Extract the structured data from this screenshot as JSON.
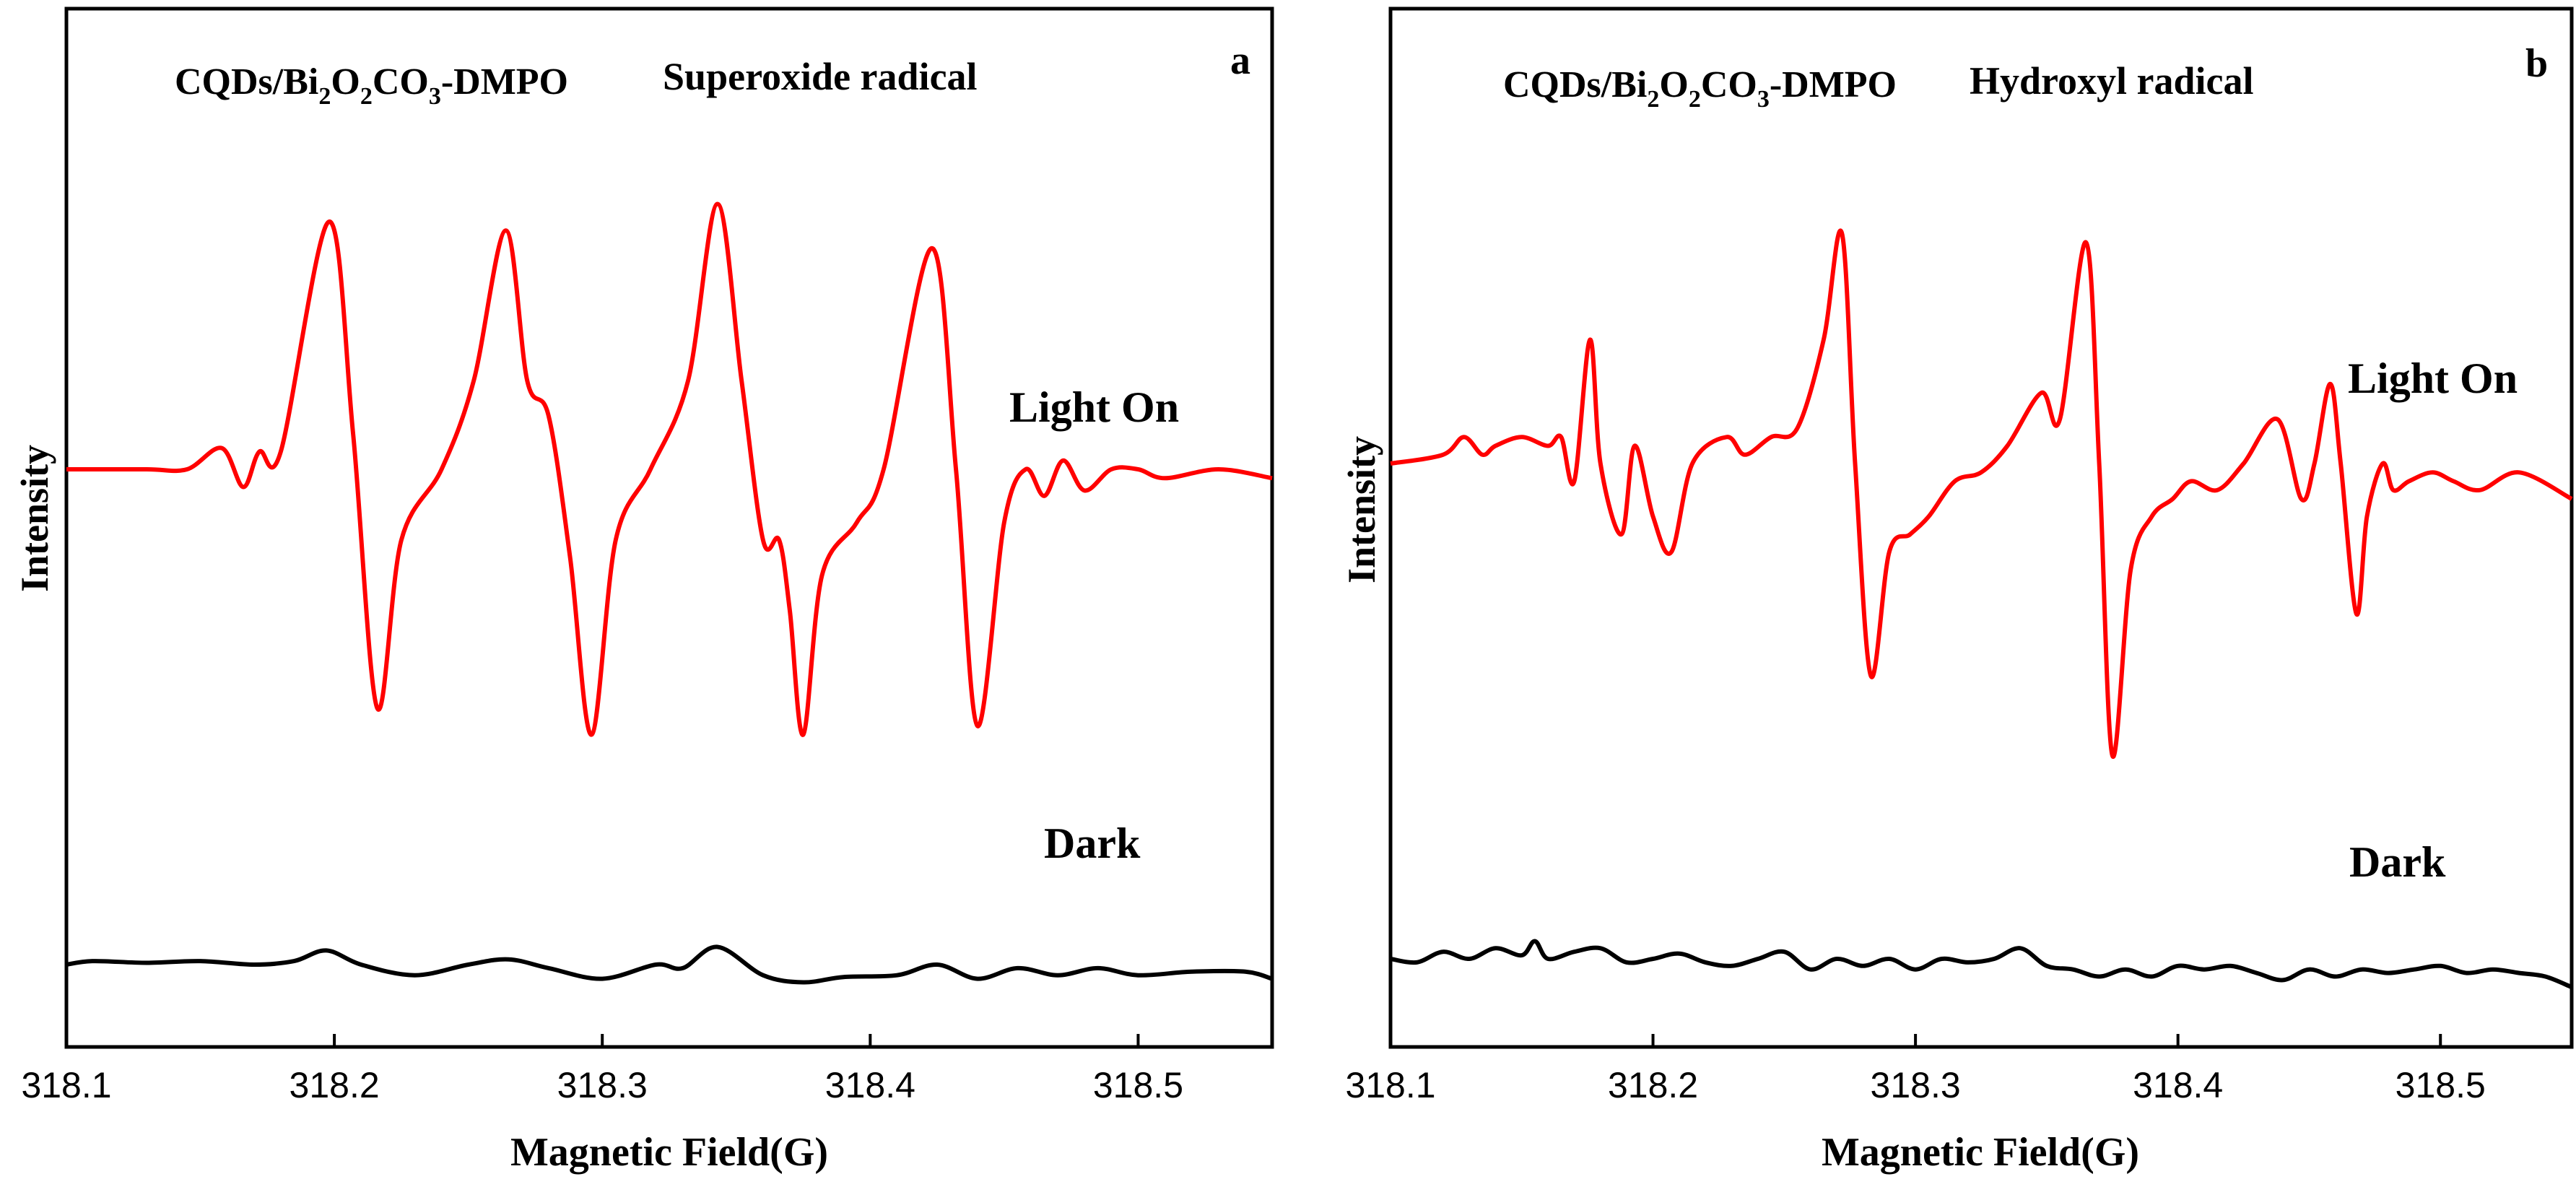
{
  "chart_data": [
    {
      "type": "line",
      "panel_label": "a",
      "title": {
        "sample_parts": [
          "CQDs/Bi",
          "2",
          "O",
          "2",
          "CO",
          "3",
          "-DMPO"
        ],
        "radical": "Superoxide radical"
      },
      "xlabel": "Magnetic Field(G)",
      "ylabel": "Intensity",
      "xlim": [
        318.1,
        318.55
      ],
      "ylim": [
        -3.2,
        3.0
      ],
      "xticks": [
        "318.1",
        "318.2",
        "318.3",
        "318.4",
        "318.5"
      ],
      "annotations": [
        "Light On",
        "Dark"
      ],
      "series": [
        {
          "name": "Light On",
          "color": "#ff0000",
          "points": [
            [
              318.1,
              0.0
            ],
            [
              318.13,
              0.0
            ],
            [
              318.145,
              0.0
            ],
            [
              318.158,
              0.12
            ],
            [
              318.166,
              -0.1
            ],
            [
              318.172,
              0.1
            ],
            [
              318.18,
              0.1
            ],
            [
              318.198,
              1.4
            ],
            [
              318.207,
              0.2
            ],
            [
              318.216,
              -1.35
            ],
            [
              318.225,
              -0.4
            ],
            [
              318.24,
              0.0
            ],
            [
              318.252,
              0.5
            ],
            [
              318.264,
              1.35
            ],
            [
              318.272,
              0.5
            ],
            [
              318.28,
              0.3
            ],
            [
              318.288,
              -0.5
            ],
            [
              318.296,
              -1.5
            ],
            [
              318.305,
              -0.4
            ],
            [
              318.318,
              0.0
            ],
            [
              318.332,
              0.5
            ],
            [
              318.343,
              1.5
            ],
            [
              318.352,
              0.5
            ],
            [
              318.36,
              -0.4
            ],
            [
              318.366,
              -0.4
            ],
            [
              318.37,
              -0.8
            ],
            [
              318.375,
              -1.5
            ],
            [
              318.382,
              -0.6
            ],
            [
              318.395,
              -0.3
            ],
            [
              318.405,
              0.0
            ],
            [
              318.423,
              1.25
            ],
            [
              318.432,
              0.0
            ],
            [
              318.44,
              -1.45
            ],
            [
              318.45,
              -0.3
            ],
            [
              318.458,
              0.0
            ],
            [
              318.465,
              -0.15
            ],
            [
              318.472,
              0.05
            ],
            [
              318.48,
              -0.12
            ],
            [
              318.49,
              0.0
            ],
            [
              318.5,
              0.0
            ],
            [
              318.51,
              -0.05
            ],
            [
              318.53,
              0.0
            ],
            [
              318.55,
              -0.05
            ]
          ]
        },
        {
          "name": "Dark",
          "color": "#000000",
          "points": [
            [
              318.1,
              -2.8
            ],
            [
              318.11,
              -2.78
            ],
            [
              318.13,
              -2.79
            ],
            [
              318.15,
              -2.78
            ],
            [
              318.17,
              -2.8
            ],
            [
              318.185,
              -2.78
            ],
            [
              318.197,
              -2.72
            ],
            [
              318.21,
              -2.8
            ],
            [
              318.23,
              -2.86
            ],
            [
              318.25,
              -2.8
            ],
            [
              318.265,
              -2.77
            ],
            [
              318.28,
              -2.82
            ],
            [
              318.3,
              -2.88
            ],
            [
              318.32,
              -2.8
            ],
            [
              318.33,
              -2.82
            ],
            [
              318.343,
              -2.7
            ],
            [
              318.36,
              -2.86
            ],
            [
              318.375,
              -2.9
            ],
            [
              318.39,
              -2.87
            ],
            [
              318.41,
              -2.86
            ],
            [
              318.425,
              -2.8
            ],
            [
              318.44,
              -2.88
            ],
            [
              318.455,
              -2.82
            ],
            [
              318.47,
              -2.86
            ],
            [
              318.485,
              -2.82
            ],
            [
              318.5,
              -2.86
            ],
            [
              318.52,
              -2.84
            ],
            [
              318.54,
              -2.84
            ],
            [
              318.55,
              -2.88
            ]
          ]
        }
      ]
    },
    {
      "type": "line",
      "panel_label": "b",
      "title": {
        "sample_parts": [
          "CQDs/Bi",
          "2",
          "O",
          "2",
          "CO",
          "3",
          "-DMPO"
        ],
        "radical": "Hydroxyl radical"
      },
      "xlabel": "Magnetic Field(G)",
      "ylabel": "Intensity",
      "xlim": [
        318.1,
        318.55
      ],
      "ylim": [
        -3.2,
        3.0
      ],
      "xticks": [
        "318.1",
        "318.2",
        "318.3",
        "318.4",
        "318.5"
      ],
      "annotations": [
        "Light On",
        "Dark"
      ],
      "series": [
        {
          "name": "Light On",
          "color": "#ff0000",
          "points": [
            [
              318.1,
              0.0
            ],
            [
              318.12,
              0.05
            ],
            [
              318.128,
              0.15
            ],
            [
              318.135,
              0.05
            ],
            [
              318.14,
              0.1
            ],
            [
              318.15,
              0.15
            ],
            [
              318.16,
              0.1
            ],
            [
              318.165,
              0.15
            ],
            [
              318.17,
              -0.1
            ],
            [
              318.176,
              0.7
            ],
            [
              318.18,
              0.0
            ],
            [
              318.188,
              -0.4
            ],
            [
              318.193,
              0.1
            ],
            [
              318.2,
              -0.3
            ],
            [
              318.207,
              -0.5
            ],
            [
              318.215,
              0.0
            ],
            [
              318.228,
              0.15
            ],
            [
              318.235,
              0.05
            ],
            [
              318.245,
              0.15
            ],
            [
              318.255,
              0.2
            ],
            [
              318.265,
              0.7
            ],
            [
              318.272,
              1.3
            ],
            [
              318.277,
              0.0
            ],
            [
              318.283,
              -1.2
            ],
            [
              318.29,
              -0.5
            ],
            [
              318.298,
              -0.4
            ],
            [
              318.305,
              -0.3
            ],
            [
              318.315,
              -0.1
            ],
            [
              318.325,
              -0.05
            ],
            [
              318.335,
              0.1
            ],
            [
              318.348,
              0.4
            ],
            [
              318.355,
              0.25
            ],
            [
              318.365,
              1.25
            ],
            [
              318.37,
              0.0
            ],
            [
              318.375,
              -1.65
            ],
            [
              318.382,
              -0.6
            ],
            [
              318.39,
              -0.3
            ],
            [
              318.398,
              -0.2
            ],
            [
              318.405,
              -0.1
            ],
            [
              318.415,
              -0.15
            ],
            [
              318.425,
              0.0
            ],
            [
              318.438,
              0.25
            ],
            [
              318.447,
              -0.2
            ],
            [
              318.452,
              0.0
            ],
            [
              318.458,
              0.45
            ],
            [
              318.462,
              0.0
            ],
            [
              318.468,
              -0.85
            ],
            [
              318.472,
              -0.3
            ],
            [
              318.478,
              0.0
            ],
            [
              318.482,
              -0.15
            ],
            [
              318.488,
              -0.1
            ],
            [
              318.497,
              -0.05
            ],
            [
              318.505,
              -0.1
            ],
            [
              318.515,
              -0.15
            ],
            [
              318.53,
              -0.05
            ],
            [
              318.55,
              -0.2
            ]
          ]
        },
        {
          "name": "Dark",
          "color": "#000000",
          "points": [
            [
              318.1,
              -2.8
            ],
            [
              318.11,
              -2.82
            ],
            [
              318.12,
              -2.76
            ],
            [
              318.13,
              -2.8
            ],
            [
              318.14,
              -2.74
            ],
            [
              318.15,
              -2.78
            ],
            [
              318.155,
              -2.7
            ],
            [
              318.16,
              -2.8
            ],
            [
              318.17,
              -2.76
            ],
            [
              318.18,
              -2.74
            ],
            [
              318.19,
              -2.82
            ],
            [
              318.2,
              -2.8
            ],
            [
              318.21,
              -2.77
            ],
            [
              318.22,
              -2.82
            ],
            [
              318.23,
              -2.84
            ],
            [
              318.24,
              -2.8
            ],
            [
              318.25,
              -2.76
            ],
            [
              318.26,
              -2.86
            ],
            [
              318.27,
              -2.8
            ],
            [
              318.28,
              -2.84
            ],
            [
              318.29,
              -2.8
            ],
            [
              318.3,
              -2.86
            ],
            [
              318.31,
              -2.8
            ],
            [
              318.32,
              -2.82
            ],
            [
              318.33,
              -2.8
            ],
            [
              318.34,
              -2.74
            ],
            [
              318.35,
              -2.84
            ],
            [
              318.36,
              -2.86
            ],
            [
              318.37,
              -2.9
            ],
            [
              318.38,
              -2.86
            ],
            [
              318.39,
              -2.9
            ],
            [
              318.4,
              -2.84
            ],
            [
              318.41,
              -2.86
            ],
            [
              318.42,
              -2.84
            ],
            [
              318.43,
              -2.88
            ],
            [
              318.44,
              -2.92
            ],
            [
              318.45,
              -2.86
            ],
            [
              318.46,
              -2.9
            ],
            [
              318.47,
              -2.86
            ],
            [
              318.48,
              -2.88
            ],
            [
              318.49,
              -2.86
            ],
            [
              318.5,
              -2.84
            ],
            [
              318.51,
              -2.88
            ],
            [
              318.52,
              -2.86
            ],
            [
              318.53,
              -2.88
            ],
            [
              318.54,
              -2.9
            ],
            [
              318.55,
              -2.96
            ]
          ]
        }
      ]
    }
  ]
}
